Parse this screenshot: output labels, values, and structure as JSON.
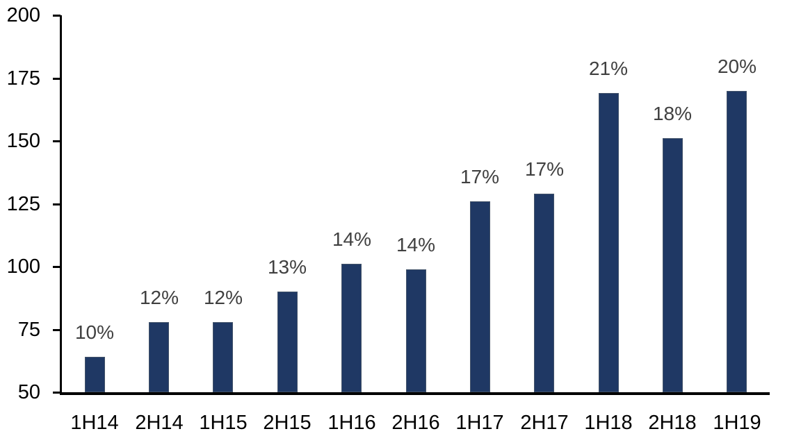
{
  "chart_data": {
    "type": "bar",
    "title": "",
    "xlabel": "",
    "ylabel": "",
    "categories": [
      "1H14",
      "2H14",
      "1H15",
      "2H15",
      "1H16",
      "2H16",
      "1H17",
      "2H17",
      "1H18",
      "2H18",
      "1H19"
    ],
    "values": [
      64,
      78,
      78,
      90,
      101,
      99,
      126,
      129,
      169,
      151,
      170
    ],
    "data_labels": [
      "10%",
      "12%",
      "12%",
      "13%",
      "14%",
      "14%",
      "17%",
      "17%",
      "21%",
      "18%",
      "20%"
    ],
    "ylim": [
      50,
      200
    ],
    "yticks": [
      200,
      175,
      150,
      125,
      100,
      75,
      50
    ],
    "grid": false,
    "legend": false,
    "colors": {
      "bar_fill": "#1F3864",
      "bar_edge": "#44546A",
      "data_label": "#404040",
      "axis_line": "#000000",
      "tick_text": "#000000",
      "background": "#FFFFFF"
    }
  }
}
